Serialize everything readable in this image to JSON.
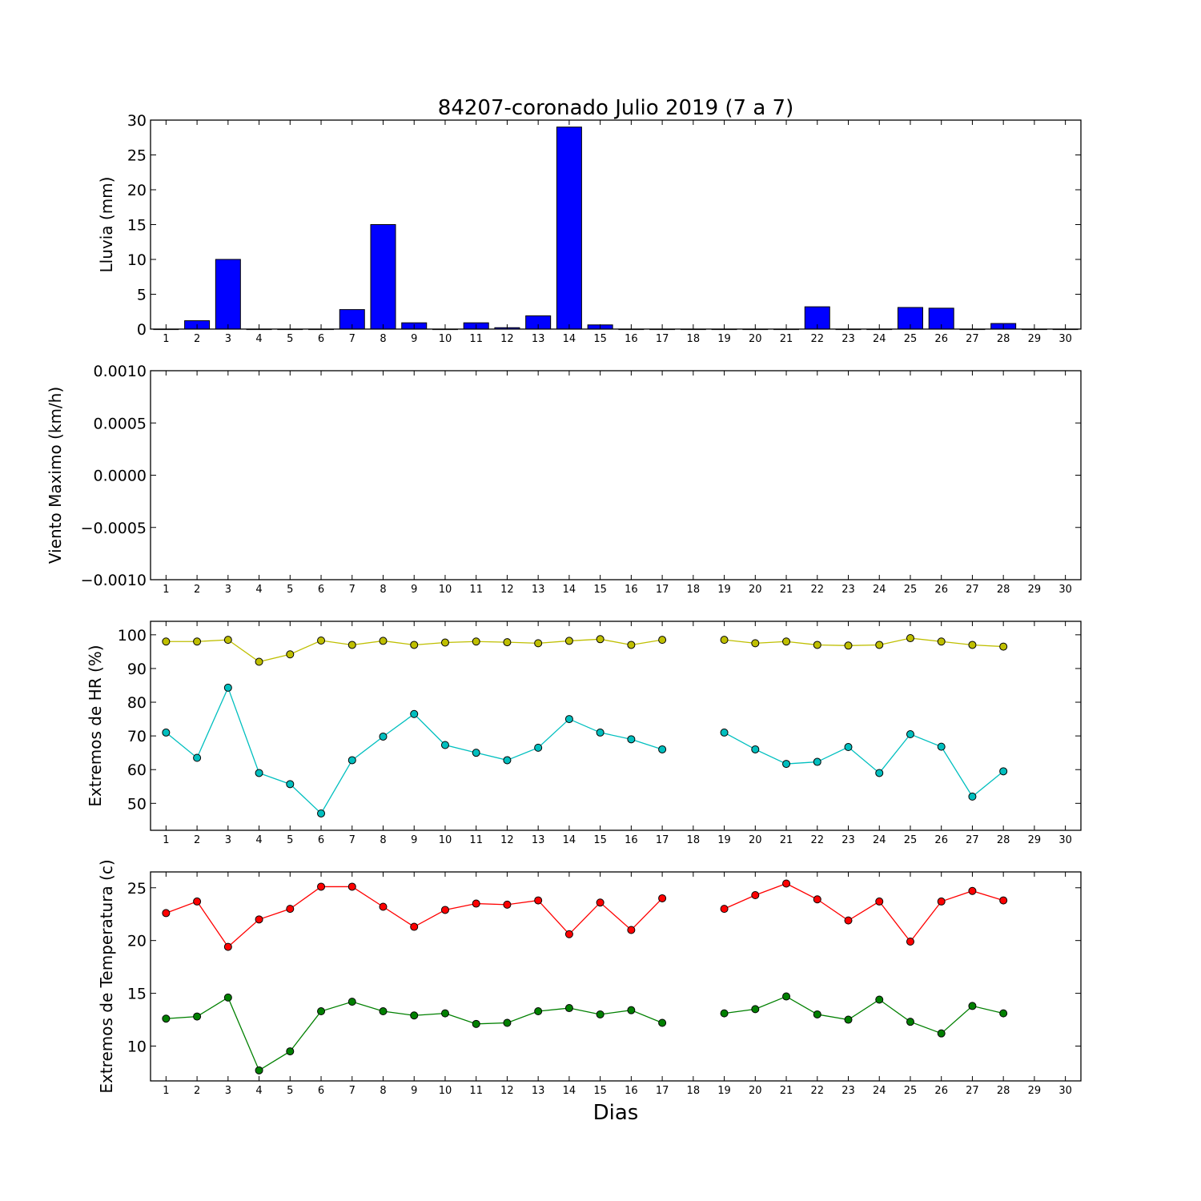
{
  "figure": {
    "title": "84207-coronado Julio 2019  (7 a 7)",
    "xlabel": "Dias"
  },
  "chart_data": [
    {
      "type": "bar",
      "ylabel": "Lluvia (mm)",
      "ylim": [
        0,
        30
      ],
      "yticks": [
        0,
        5,
        10,
        15,
        20,
        25,
        30
      ],
      "ytick_labels": [
        "0",
        "5",
        "10",
        "15",
        "20",
        "25",
        "30"
      ],
      "x_categories": [
        "1",
        "2",
        "3",
        "4",
        "5",
        "6",
        "7",
        "8",
        "9",
        "10",
        "11",
        "12",
        "13",
        "14",
        "15",
        "16",
        "17",
        "18",
        "19",
        "20",
        "21",
        "22",
        "23",
        "24",
        "25",
        "26",
        "27",
        "28",
        "29",
        "30"
      ],
      "color": "#0000ff",
      "values": [
        0,
        1.2,
        10,
        0,
        0,
        0,
        2.8,
        15,
        0.9,
        0,
        0.9,
        0.2,
        1.9,
        29,
        0.6,
        0,
        0,
        0,
        0,
        0,
        0,
        3.2,
        0,
        0,
        3.1,
        3,
        0,
        0.8,
        0,
        0
      ]
    },
    {
      "type": "line",
      "ylabel": "Viento Maximo (km/h)",
      "ylim": [
        -0.001,
        0.001
      ],
      "yticks": [
        -0.001,
        -0.0005,
        0,
        0.0005,
        0.001
      ],
      "ytick_labels": [
        "−0.0010",
        "−0.0005",
        "0.0000",
        "0.0005",
        "0.0010"
      ],
      "x_categories": [
        "1",
        "2",
        "3",
        "4",
        "5",
        "6",
        "7",
        "8",
        "9",
        "10",
        "11",
        "12",
        "13",
        "14",
        "15",
        "16",
        "17",
        "18",
        "19",
        "20",
        "21",
        "22",
        "23",
        "24",
        "25",
        "26",
        "27",
        "28",
        "29",
        "30"
      ],
      "series": []
    },
    {
      "type": "line",
      "ylabel": "Extremos de HR (%)",
      "ylim": [
        42,
        104
      ],
      "yticks": [
        50,
        60,
        70,
        80,
        90,
        100
      ],
      "ytick_labels": [
        "50",
        "60",
        "70",
        "80",
        "90",
        "100"
      ],
      "x_categories": [
        "1",
        "2",
        "3",
        "4",
        "5",
        "6",
        "7",
        "8",
        "9",
        "10",
        "11",
        "12",
        "13",
        "14",
        "15",
        "16",
        "17",
        "18",
        "19",
        "20",
        "21",
        "22",
        "23",
        "24",
        "25",
        "26",
        "27",
        "28",
        "29",
        "30"
      ],
      "series": [
        {
          "color": "#bfbf00",
          "values": [
            98,
            98,
            98.5,
            92,
            94.2,
            98.3,
            97,
            98.2,
            97,
            97.7,
            98,
            97.8,
            97.5,
            98.2,
            98.7,
            97,
            98.5,
            null,
            98.5,
            97.5,
            98,
            97,
            96.8,
            97,
            99,
            98,
            97,
            96.5,
            null,
            null
          ]
        },
        {
          "color": "#00bfbf",
          "values": [
            71,
            63.5,
            84.3,
            59,
            55.7,
            47,
            62.8,
            69.8,
            76.5,
            67.3,
            65,
            62.8,
            66.5,
            75,
            71,
            69,
            66,
            null,
            71,
            66,
            61.7,
            62.3,
            66.7,
            59,
            70.5,
            66.8,
            52,
            59.5,
            null,
            null
          ]
        }
      ]
    },
    {
      "type": "line",
      "ylabel": "Extremos de Temperatura (c)",
      "ylim": [
        6.7,
        26.5
      ],
      "yticks": [
        10,
        15,
        20,
        25
      ],
      "ytick_labels": [
        "10",
        "15",
        "20",
        "25"
      ],
      "xtick_show_labels": true,
      "x_categories": [
        "1",
        "2",
        "3",
        "4",
        "5",
        "6",
        "7",
        "8",
        "9",
        "10",
        "11",
        "12",
        "13",
        "14",
        "15",
        "16",
        "17",
        "18",
        "19",
        "20",
        "21",
        "22",
        "23",
        "24",
        "25",
        "26",
        "27",
        "28",
        "29",
        "30"
      ],
      "series": [
        {
          "color": "#ff0000",
          "values": [
            22.6,
            23.7,
            19.4,
            22,
            23,
            25.1,
            25.1,
            23.2,
            21.3,
            22.9,
            23.5,
            23.4,
            23.8,
            20.6,
            23.6,
            21,
            24,
            null,
            23,
            24.3,
            25.4,
            23.9,
            21.9,
            23.7,
            19.9,
            23.7,
            24.7,
            23.8,
            null,
            null
          ]
        },
        {
          "color": "#008000",
          "values": [
            12.6,
            12.8,
            14.6,
            7.7,
            9.5,
            13.3,
            14.2,
            13.3,
            12.9,
            13.1,
            12.1,
            12.2,
            13.3,
            13.6,
            13,
            13.4,
            12.2,
            null,
            13.1,
            13.5,
            14.7,
            13,
            12.5,
            14.4,
            12.3,
            11.2,
            13.8,
            13.1,
            null,
            null
          ]
        }
      ]
    }
  ]
}
